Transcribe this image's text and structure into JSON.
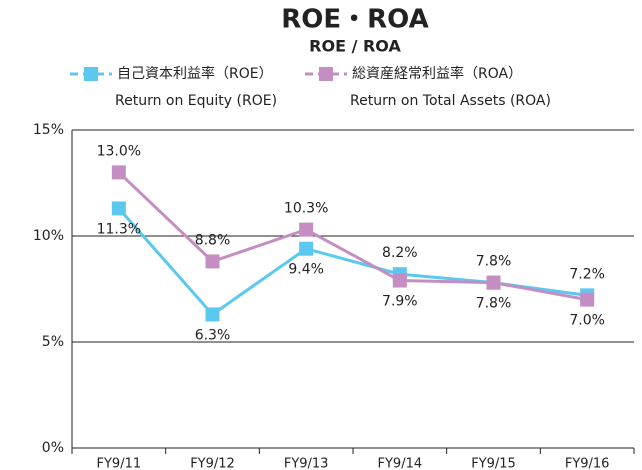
{
  "chart_data": {
    "type": "line",
    "title": "ROE・ROA",
    "subtitle": "ROE / ROA",
    "categories": [
      "FY9/11",
      "FY9/12",
      "FY9/13",
      "FY9/14",
      "FY9/15",
      "FY9/16"
    ],
    "series": [
      {
        "name": "自己資本利益率（ROE）",
        "subname": "Return on Equity (ROE)",
        "color": "#5bc8f0",
        "values": [
          11.3,
          6.3,
          9.4,
          8.2,
          7.8,
          7.2
        ],
        "value_labels": [
          "11.3%",
          "6.3%",
          "9.4%",
          "8.2%",
          "7.8%",
          "7.2%"
        ]
      },
      {
        "name": "総資産経常利益率（ROA）",
        "subname": "Return on Total Assets (ROA)",
        "color": "#c58ec2",
        "values": [
          13.0,
          8.8,
          10.3,
          7.9,
          7.8,
          7.0
        ],
        "value_labels": [
          "13.0%",
          "8.8%",
          "10.3%",
          "7.9%",
          "7.8%",
          "7.0%"
        ]
      }
    ],
    "ylim": [
      0,
      15
    ],
    "yticks": [
      {
        "value": 0,
        "label": "0%"
      },
      {
        "value": 5,
        "label": "5%"
      },
      {
        "value": 10,
        "label": "10%"
      },
      {
        "value": 15,
        "label": "15%"
      }
    ],
    "grid": true
  }
}
